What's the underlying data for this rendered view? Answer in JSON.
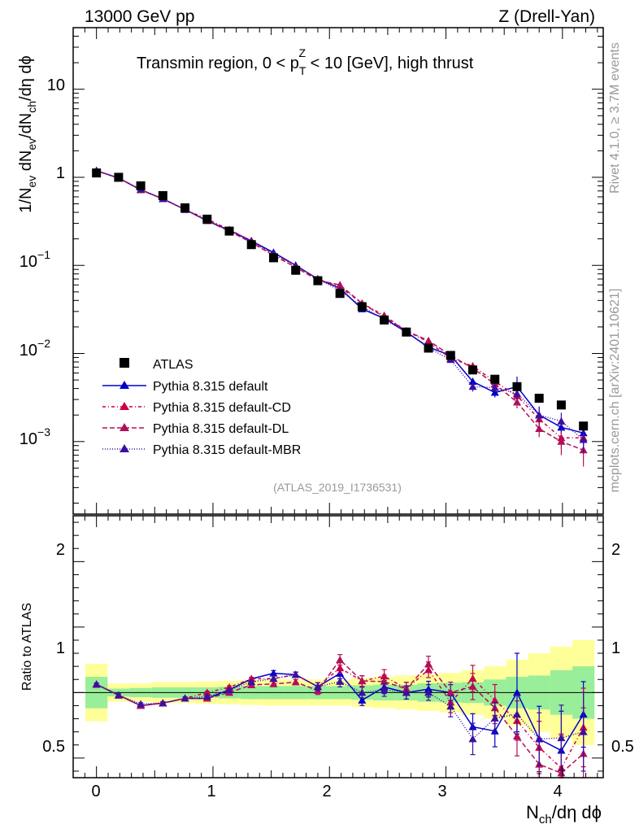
{
  "header": {
    "energy_label": "13000 GeV pp",
    "process_label": "Z (Drell-Yan)",
    "rivet_label": "Rivet 4.1.0, ≥ 3.7M events",
    "source_label": "mcplots.cern.ch [arXiv:2401.10621]",
    "analysis_label": "(ATLAS_2019_I1736531)"
  },
  "main_panel": {
    "title_prefix": "Transmin region, 0 < p",
    "title_sub": "T",
    "title_sup": "Z",
    "title_suffix": " < 10 [GeV], high thrust",
    "ylabel_1": "1/N",
    "ylabel_1_sub": "ev",
    "ylabel_2": " dN",
    "ylabel_2_sub": "ev",
    "ylabel_3": "/dN",
    "ylabel_3_sub": "ch",
    "ylabel_4": "/dη dϕ",
    "ytick_10": "10",
    "ytick_1": "1",
    "ytick_base": "10",
    "ytick_exp_m1": "−1",
    "ytick_exp_m2": "−2",
    "ytick_exp_m3": "−3"
  },
  "ratio_panel": {
    "ylabel": "Ratio to ATLAS",
    "ticks": [
      "2",
      "1",
      "0.5"
    ]
  },
  "xaxis": {
    "label_main": "N",
    "label_sub": "ch",
    "label_rest": "/dη dϕ",
    "ticks": [
      "0",
      "1",
      "2",
      "3",
      "4"
    ]
  },
  "legend": {
    "atlas": "ATLAS",
    "default": "Pythia 8.315 default",
    "cd": "Pythia 8.315 default-CD",
    "dl": "Pythia 8.315 default-DL",
    "mbr": "Pythia 8.315 default-MBR"
  },
  "chart_data": {
    "type": "scatter",
    "yscale": "log",
    "xlim": [
      -0.2,
      4.35
    ],
    "ylim": [
      0.00015,
      50
    ],
    "ratio_ylim": [
      0.35,
      2.35
    ],
    "x": [
      0.0,
      0.19,
      0.38,
      0.57,
      0.76,
      0.95,
      1.14,
      1.33,
      1.52,
      1.71,
      1.9,
      2.09,
      2.28,
      2.47,
      2.66,
      2.85,
      3.04,
      3.23,
      3.42,
      3.61,
      3.8,
      3.99,
      4.18
    ],
    "atlas": [
      1.12,
      1.0,
      0.8,
      0.62,
      0.45,
      0.335,
      0.245,
      0.172,
      0.122,
      0.088,
      0.067,
      0.048,
      0.034,
      0.024,
      0.0175,
      0.0115,
      0.0095,
      0.0065,
      0.0051,
      0.0042,
      0.0031,
      0.0026,
      0.0015
    ],
    "band_green": [
      0.12,
      0.03,
      0.035,
      0.04,
      0.04,
      0.04,
      0.045,
      0.05,
      0.05,
      0.05,
      0.05,
      0.05,
      0.055,
      0.06,
      0.06,
      0.07,
      0.075,
      0.08,
      0.1,
      0.12,
      0.13,
      0.17,
      0.2
    ],
    "band_yellow": [
      0.22,
      0.07,
      0.07,
      0.08,
      0.08,
      0.085,
      0.09,
      0.095,
      0.1,
      0.1,
      0.1,
      0.1,
      0.11,
      0.12,
      0.13,
      0.14,
      0.15,
      0.17,
      0.2,
      0.25,
      0.3,
      0.35,
      0.4
    ],
    "series": [
      {
        "name": "Pythia 8.315 default",
        "color": "#0000cc",
        "dash": "",
        "values": [
          1.19,
          0.98,
          0.72,
          0.57,
          0.43,
          0.32,
          0.25,
          0.19,
          0.14,
          0.1,
          0.07,
          0.055,
          0.032,
          0.025,
          0.0175,
          0.0118,
          0.0095,
          0.0048,
          0.0036,
          0.0042,
          0.002,
          0.00145,
          0.00125
        ],
        "err": [
          0.01,
          0.01,
          0.01,
          0.01,
          0.01,
          0.01,
          0.01,
          0.01,
          0.02,
          0.02,
          0.03,
          0.04,
          0.04,
          0.05,
          0.05,
          0.06,
          0.06,
          0.1,
          0.12,
          0.3,
          0.25,
          0.3,
          0.25
        ]
      },
      {
        "name": "Pythia 8.315 default-CD",
        "color": "#cc0044",
        "dash": "4,3,1,3",
        "values": [
          1.19,
          0.98,
          0.72,
          0.57,
          0.43,
          0.335,
          0.255,
          0.19,
          0.135,
          0.1,
          0.07,
          0.057,
          0.037,
          0.027,
          0.018,
          0.0135,
          0.0088,
          0.0072,
          0.0048,
          0.0033,
          0.0018,
          0.0011,
          0.0011
        ],
        "err": [
          0.01,
          0.01,
          0.01,
          0.01,
          0.01,
          0.01,
          0.01,
          0.01,
          0.02,
          0.02,
          0.03,
          0.04,
          0.04,
          0.05,
          0.05,
          0.06,
          0.08,
          0.1,
          0.12,
          0.15,
          0.2,
          0.25,
          0.3
        ]
      },
      {
        "name": "Pythia 8.315 default-DL",
        "color": "#b0105a",
        "dash": "6,3",
        "values": [
          1.19,
          0.98,
          0.72,
          0.57,
          0.43,
          0.32,
          0.245,
          0.182,
          0.13,
          0.095,
          0.068,
          0.06,
          0.037,
          0.026,
          0.018,
          0.014,
          0.0095,
          0.0068,
          0.0045,
          0.0028,
          0.0014,
          0.001,
          0.0008
        ],
        "err": [
          0.01,
          0.01,
          0.01,
          0.01,
          0.01,
          0.01,
          0.01,
          0.01,
          0.02,
          0.02,
          0.03,
          0.04,
          0.04,
          0.05,
          0.05,
          0.06,
          0.08,
          0.1,
          0.12,
          0.15,
          0.2,
          0.3,
          0.35
        ]
      },
      {
        "name": "Pythia 8.315 default-MBR",
        "color": "#3a10a0",
        "dash": "1,2",
        "values": [
          1.19,
          0.98,
          0.73,
          0.57,
          0.43,
          0.325,
          0.25,
          0.186,
          0.135,
          0.1,
          0.07,
          0.052,
          0.034,
          0.0245,
          0.0175,
          0.0115,
          0.0085,
          0.0042,
          0.0041,
          0.0035,
          0.002,
          0.0017,
          0.00105
        ],
        "err": [
          0.01,
          0.01,
          0.01,
          0.01,
          0.01,
          0.01,
          0.01,
          0.01,
          0.02,
          0.02,
          0.03,
          0.04,
          0.04,
          0.05,
          0.05,
          0.06,
          0.08,
          0.12,
          0.12,
          0.15,
          0.2,
          0.25,
          0.3
        ]
      }
    ]
  }
}
